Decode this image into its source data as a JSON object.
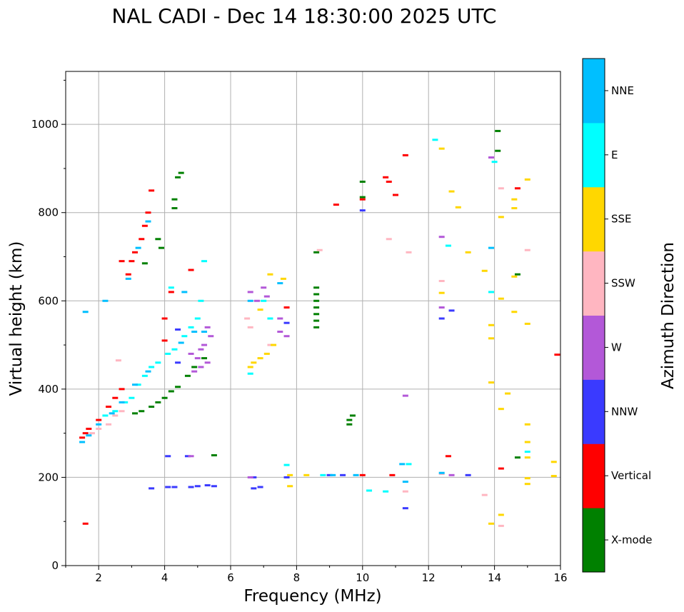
{
  "chart_data": {
    "type": "scatter",
    "title": "NAL CADI - Dec 14 18:30:00 2025 UTC",
    "xlabel": "Frequency (MHz)",
    "ylabel": "Virtual height (km)",
    "xlim": [
      1,
      16
    ],
    "ylim": [
      0,
      1120
    ],
    "xticks": [
      2,
      4,
      6,
      8,
      10,
      12,
      14,
      16
    ],
    "yticks": [
      0,
      200,
      400,
      600,
      800,
      1000
    ],
    "grid": true,
    "colorbar": {
      "label": "Azimuth Direction",
      "categories": [
        {
          "name": "X-mode",
          "color": "#008000"
        },
        {
          "name": "Vertical",
          "color": "#ff0000"
        },
        {
          "name": "NNW",
          "color": "#3a3aff"
        },
        {
          "name": "W",
          "color": "#b358d8"
        },
        {
          "name": "SSW",
          "color": "#ffb6c1"
        },
        {
          "name": "SSE",
          "color": "#ffd700"
        },
        {
          "name": "E",
          "color": "#00ffff"
        },
        {
          "name": "NNE",
          "color": "#00bfff"
        }
      ]
    },
    "series": [
      {
        "name": "X-mode",
        "points": [
          [
            9.6,
            320
          ],
          [
            9.6,
            330
          ],
          [
            9.7,
            340
          ],
          [
            3.1,
            345
          ],
          [
            3.3,
            350
          ],
          [
            3.6,
            360
          ],
          [
            3.8,
            370
          ],
          [
            4.0,
            380
          ],
          [
            4.2,
            395
          ],
          [
            4.4,
            405
          ],
          [
            4.7,
            430
          ],
          [
            4.9,
            450
          ],
          [
            5.2,
            470
          ],
          [
            4.3,
            810
          ],
          [
            4.3,
            830
          ],
          [
            4.4,
            880
          ],
          [
            4.5,
            890
          ],
          [
            3.9,
            720
          ],
          [
            3.8,
            740
          ],
          [
            8.6,
            540
          ],
          [
            8.6,
            555
          ],
          [
            8.6,
            570
          ],
          [
            8.6,
            585
          ],
          [
            8.6,
            600
          ],
          [
            8.6,
            615
          ],
          [
            8.6,
            630
          ],
          [
            8.6,
            710
          ],
          [
            14.1,
            985
          ],
          [
            14.1,
            940
          ],
          [
            14.7,
            660
          ],
          [
            14.7,
            245
          ],
          [
            10.0,
            870
          ],
          [
            10.0,
            835
          ],
          [
            3.4,
            685
          ],
          [
            5.5,
            250
          ]
        ]
      },
      {
        "name": "Vertical",
        "points": [
          [
            1.5,
            290
          ],
          [
            1.6,
            300
          ],
          [
            1.7,
            310
          ],
          [
            2.0,
            330
          ],
          [
            2.3,
            360
          ],
          [
            2.5,
            380
          ],
          [
            2.7,
            400
          ],
          [
            2.9,
            660
          ],
          [
            3.0,
            690
          ],
          [
            3.1,
            710
          ],
          [
            3.3,
            740
          ],
          [
            3.4,
            770
          ],
          [
            3.5,
            800
          ],
          [
            2.7,
            690
          ],
          [
            4.0,
            510
          ],
          [
            4.0,
            560
          ],
          [
            4.2,
            620
          ],
          [
            4.8,
            670
          ],
          [
            7.7,
            585
          ],
          [
            9.2,
            818
          ],
          [
            10.0,
            830
          ],
          [
            10.7,
            880
          ],
          [
            10.8,
            870
          ],
          [
            11.0,
            840
          ],
          [
            11.3,
            930
          ],
          [
            12.6,
            248
          ],
          [
            14.2,
            220
          ],
          [
            14.7,
            855
          ],
          [
            15.9,
            478
          ],
          [
            10.0,
            205
          ],
          [
            10.9,
            205
          ],
          [
            3.6,
            850
          ],
          [
            1.6,
            95
          ]
        ]
      },
      {
        "name": "NNW",
        "points": [
          [
            3.6,
            175
          ],
          [
            4.1,
            178
          ],
          [
            4.3,
            178
          ],
          [
            4.8,
            178
          ],
          [
            5.0,
            180
          ],
          [
            5.3,
            182
          ],
          [
            5.5,
            180
          ],
          [
            6.7,
            175
          ],
          [
            6.9,
            178
          ],
          [
            6.7,
            200
          ],
          [
            7.7,
            200
          ],
          [
            9.0,
            205
          ],
          [
            9.4,
            205
          ],
          [
            13.2,
            205
          ],
          [
            11.3,
            130
          ],
          [
            12.4,
            560
          ],
          [
            12.7,
            578
          ],
          [
            10.0,
            805
          ],
          [
            4.1,
            248
          ],
          [
            4.7,
            248
          ],
          [
            7.7,
            550
          ],
          [
            4.4,
            535
          ],
          [
            4.4,
            460
          ]
        ]
      },
      {
        "name": "W",
        "points": [
          [
            4.8,
            480
          ],
          [
            5.0,
            470
          ],
          [
            5.1,
            490
          ],
          [
            5.2,
            500
          ],
          [
            5.3,
            460
          ],
          [
            5.1,
            450
          ],
          [
            4.9,
            440
          ],
          [
            5.4,
            520
          ],
          [
            5.3,
            540
          ],
          [
            6.8,
            600
          ],
          [
            7.0,
            630
          ],
          [
            7.1,
            610
          ],
          [
            6.6,
            620
          ],
          [
            7.5,
            530
          ],
          [
            7.7,
            520
          ],
          [
            7.5,
            560
          ],
          [
            11.3,
            385
          ],
          [
            12.4,
            585
          ],
          [
            12.4,
            745
          ],
          [
            13.9,
            925
          ],
          [
            4.8,
            248
          ],
          [
            12.7,
            205
          ],
          [
            6.6,
            200
          ]
        ]
      },
      {
        "name": "SSW",
        "points": [
          [
            2.3,
            320
          ],
          [
            2.5,
            340
          ],
          [
            2.7,
            350
          ],
          [
            2.0,
            310
          ],
          [
            1.8,
            300
          ],
          [
            6.5,
            560
          ],
          [
            6.6,
            540
          ],
          [
            7.2,
            500
          ],
          [
            11.4,
            710
          ],
          [
            10.8,
            740
          ],
          [
            12.4,
            645
          ],
          [
            14.2,
            855
          ],
          [
            14.2,
            90
          ],
          [
            13.7,
            160
          ],
          [
            11.3,
            168
          ],
          [
            15.0,
            715
          ],
          [
            12.4,
            208
          ],
          [
            8.7,
            715
          ],
          [
            2.6,
            465
          ]
        ]
      },
      {
        "name": "SSE",
        "points": [
          [
            6.6,
            450
          ],
          [
            6.7,
            460
          ],
          [
            6.9,
            470
          ],
          [
            7.1,
            480
          ],
          [
            7.3,
            500
          ],
          [
            7.2,
            660
          ],
          [
            6.9,
            580
          ],
          [
            7.6,
            650
          ],
          [
            7.8,
            180
          ],
          [
            7.8,
            205
          ],
          [
            8.3,
            205
          ],
          [
            12.4,
            945
          ],
          [
            12.4,
            618
          ],
          [
            12.7,
            848
          ],
          [
            12.9,
            812
          ],
          [
            13.2,
            710
          ],
          [
            13.7,
            668
          ],
          [
            13.9,
            515
          ],
          [
            13.9,
            545
          ],
          [
            13.9,
            415
          ],
          [
            13.9,
            95
          ],
          [
            14.2,
            355
          ],
          [
            14.2,
            605
          ],
          [
            14.2,
            790
          ],
          [
            14.2,
            115
          ],
          [
            14.4,
            390
          ],
          [
            14.6,
            575
          ],
          [
            14.6,
            655
          ],
          [
            14.6,
            810
          ],
          [
            14.6,
            830
          ],
          [
            15.0,
            875
          ],
          [
            15.0,
            548
          ],
          [
            15.0,
            320
          ],
          [
            15.0,
            280
          ],
          [
            15.0,
            245
          ],
          [
            15.0,
            198
          ],
          [
            15.0,
            185
          ],
          [
            15.8,
            235
          ],
          [
            15.8,
            203
          ]
        ]
      },
      {
        "name": "E",
        "points": [
          [
            2.2,
            340
          ],
          [
            2.5,
            350
          ],
          [
            2.8,
            370
          ],
          [
            3.0,
            380
          ],
          [
            3.2,
            410
          ],
          [
            3.4,
            430
          ],
          [
            3.6,
            450
          ],
          [
            3.8,
            460
          ],
          [
            4.1,
            480
          ],
          [
            4.3,
            490
          ],
          [
            4.6,
            520
          ],
          [
            4.8,
            540
          ],
          [
            5.0,
            560
          ],
          [
            5.1,
            600
          ],
          [
            4.2,
            630
          ],
          [
            6.6,
            435
          ],
          [
            7.0,
            600
          ],
          [
            7.2,
            560
          ],
          [
            12.2,
            965
          ],
          [
            12.6,
            725
          ],
          [
            14.0,
            915
          ],
          [
            13.9,
            620
          ],
          [
            11.4,
            230
          ],
          [
            10.2,
            170
          ],
          [
            10.7,
            168
          ],
          [
            15.0,
            258
          ],
          [
            7.7,
            228
          ],
          [
            8.8,
            205
          ],
          [
            5.2,
            690
          ]
        ]
      },
      {
        "name": "NNE",
        "points": [
          [
            1.5,
            280
          ],
          [
            1.7,
            295
          ],
          [
            2.0,
            320
          ],
          [
            2.4,
            345
          ],
          [
            2.7,
            370
          ],
          [
            3.1,
            410
          ],
          [
            3.5,
            440
          ],
          [
            2.9,
            650
          ],
          [
            3.2,
            720
          ],
          [
            3.5,
            780
          ],
          [
            2.2,
            600
          ],
          [
            1.6,
            575
          ],
          [
            4.5,
            505
          ],
          [
            4.9,
            530
          ],
          [
            5.2,
            530
          ],
          [
            6.6,
            600
          ],
          [
            7.5,
            640
          ],
          [
            9.1,
            205
          ],
          [
            9.8,
            205
          ],
          [
            11.2,
            230
          ],
          [
            13.9,
            720
          ],
          [
            12.4,
            210
          ],
          [
            11.3,
            190
          ],
          [
            4.6,
            620
          ]
        ]
      }
    ]
  }
}
